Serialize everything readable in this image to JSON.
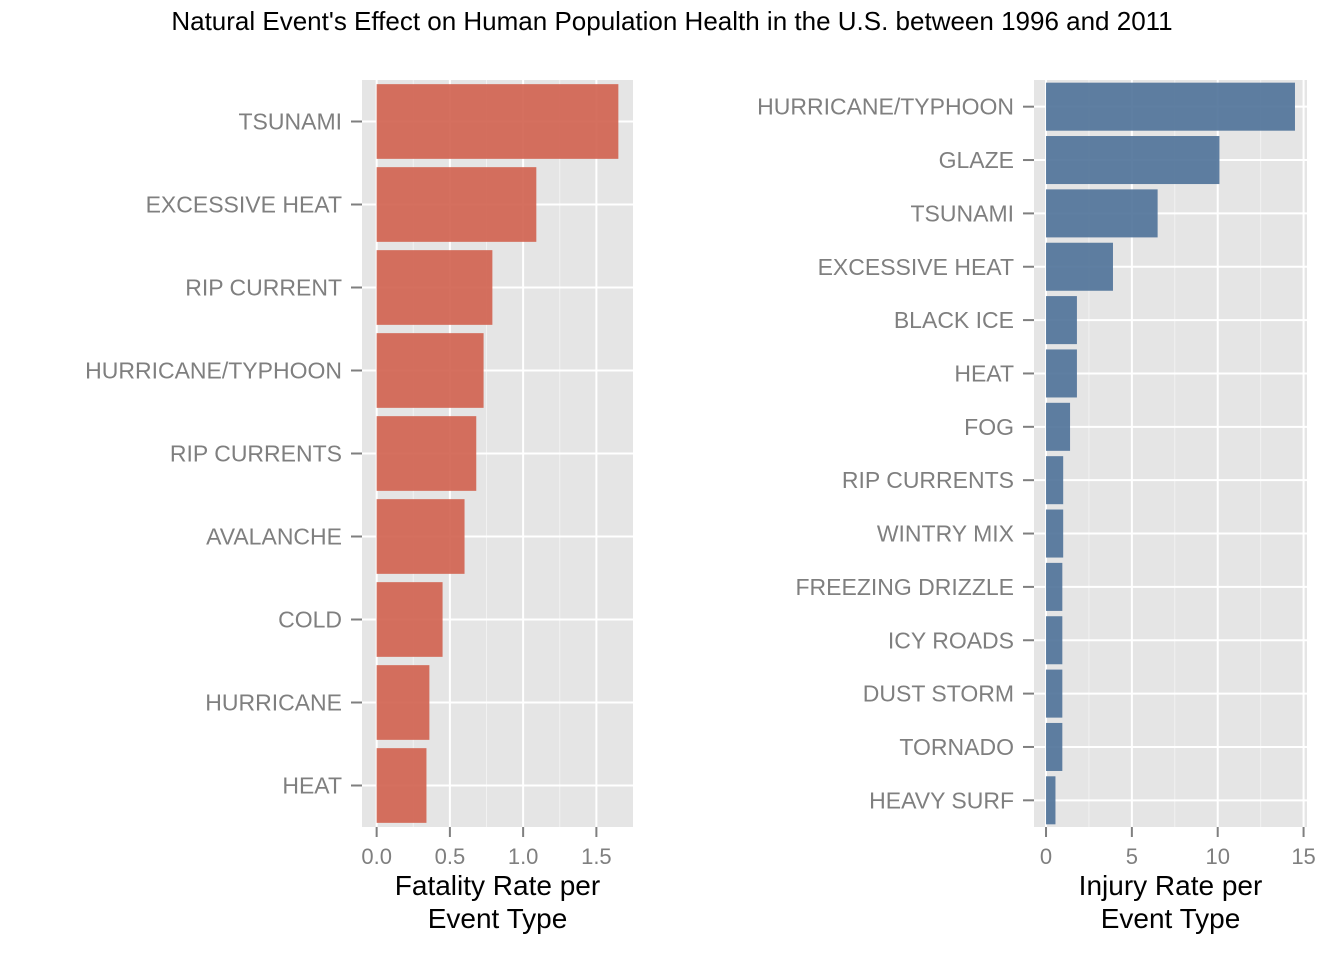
{
  "title": "Natural Event's Effect on Human Population Health in the U.S. between 1996 and 2011",
  "chart_data": [
    {
      "type": "bar",
      "orientation": "horizontal",
      "color": "#d0614e",
      "categories": [
        "TSUNAMI",
        "EXCESSIVE HEAT",
        "RIP CURRENT",
        "HURRICANE/TYPHOON",
        "RIP CURRENTS",
        "AVALANCHE",
        "COLD",
        "HURRICANE",
        "HEAT"
      ],
      "values": [
        1.65,
        1.09,
        0.79,
        0.73,
        0.68,
        0.6,
        0.45,
        0.36,
        0.34
      ],
      "xlabel": [
        "Fatality Rate per",
        "Event Type"
      ],
      "ylabel": "",
      "xlim": [
        -0.1,
        1.75
      ],
      "xticks": [
        "0.0",
        "0.5",
        "1.0",
        "1.5"
      ],
      "grid": true
    },
    {
      "type": "bar",
      "orientation": "horizontal",
      "color": "#4e7198",
      "categories": [
        "HURRICANE/TYPHOON",
        "GLAZE",
        "TSUNAMI",
        "EXCESSIVE HEAT",
        "BLACK ICE",
        "HEAT",
        "FOG",
        "RIP CURRENTS",
        "WINTRY MIX",
        "FREEZING DRIZZLE",
        "ICY ROADS",
        "DUST STORM",
        "TORNADO",
        "HEAVY SURF"
      ],
      "values": [
        14.5,
        10.1,
        6.5,
        3.9,
        1.8,
        1.8,
        1.4,
        1.0,
        1.0,
        0.95,
        0.95,
        0.95,
        0.95,
        0.55
      ],
      "xlabel": [
        "Injury Rate per",
        "Event Type"
      ],
      "ylabel": "",
      "xlim": [
        -0.7,
        15.2
      ],
      "xticks": [
        "0",
        "5",
        "10",
        "15"
      ],
      "grid": true
    }
  ]
}
